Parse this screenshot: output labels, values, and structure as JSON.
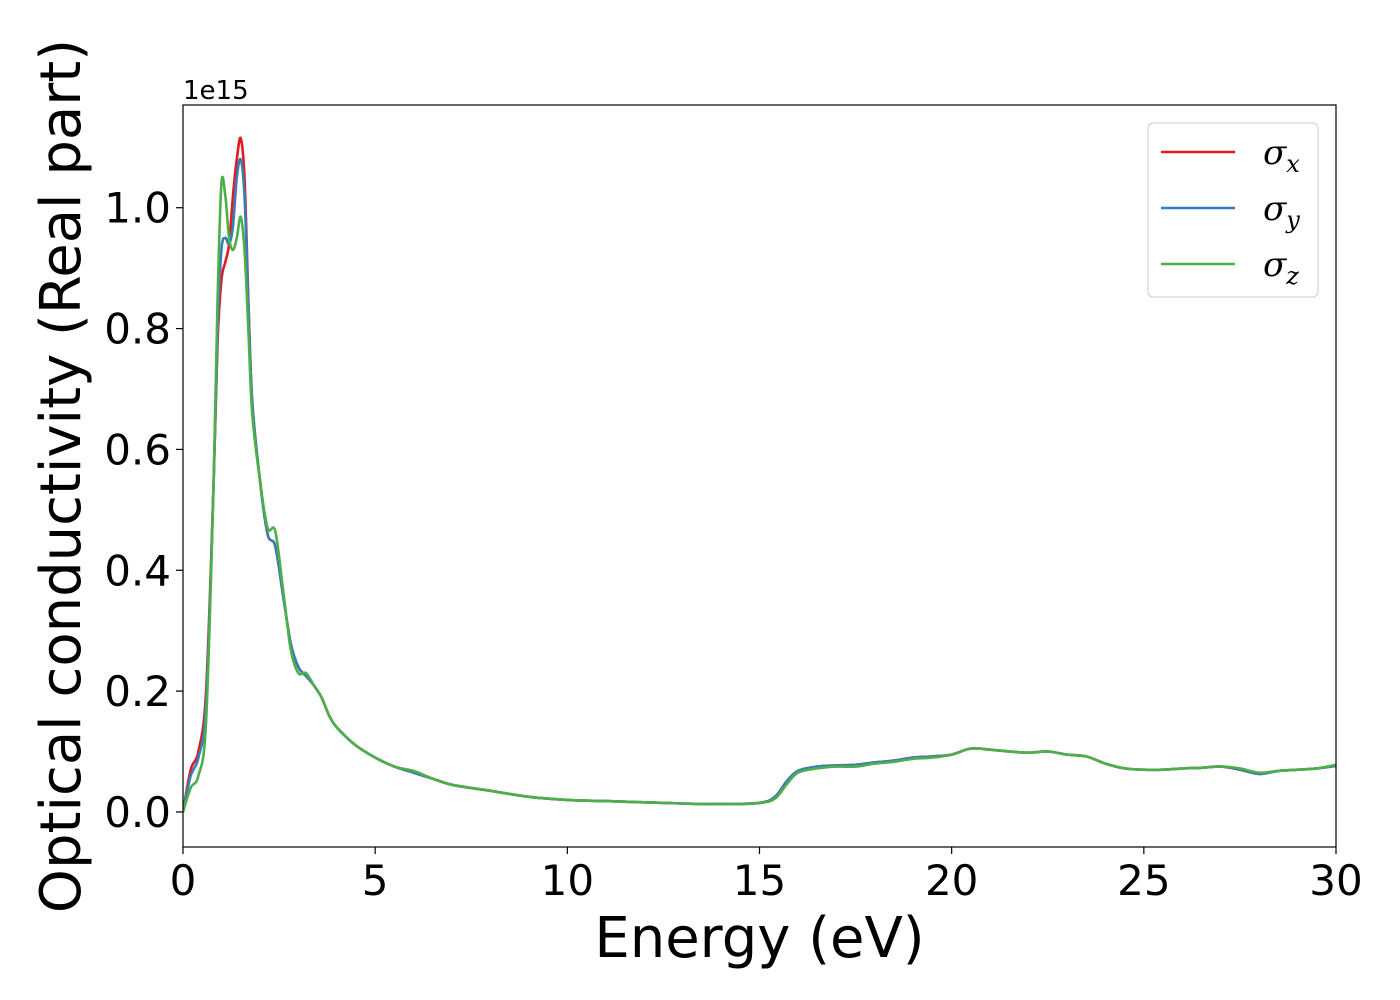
{
  "chart_data": {
    "type": "line",
    "xlabel": "Energy (eV)",
    "ylabel": "Optical conductivity (Real part)",
    "y_offset_text": "1e15",
    "y_scale": 1000000000000000.0,
    "xlim": [
      0,
      30
    ],
    "ylim": [
      -0.058,
      1.17
    ],
    "xticks": [
      0,
      5,
      10,
      15,
      20,
      25,
      30
    ],
    "xtick_labels": [
      "0",
      "5",
      "10",
      "15",
      "20",
      "25",
      "30"
    ],
    "yticks": [
      0.0,
      0.2,
      0.4,
      0.6,
      0.8,
      1.0
    ],
    "ytick_labels": [
      "0.0",
      "0.2",
      "0.4",
      "0.6",
      "0.8",
      "1.0"
    ],
    "grid": false,
    "legend_position": "top-right",
    "series": [
      {
        "name": "σx",
        "symbol": "σ",
        "subscript": "x",
        "color": "#e41a1c",
        "x": [
          0,
          0.2,
          0.4,
          0.6,
          0.8,
          0.9,
          1.0,
          1.1,
          1.2,
          1.3,
          1.4,
          1.5,
          1.6,
          1.7,
          1.8,
          2.0,
          2.2,
          2.4,
          2.6,
          2.8,
          3.0,
          3.2,
          3.4,
          3.6,
          3.8,
          4.0,
          4.5,
          5.0,
          5.5,
          6.0,
          6.5,
          7.0,
          8.0,
          9.0,
          10.0,
          11.0,
          12.0,
          13.0,
          14.0,
          15.0,
          15.4,
          15.7,
          16.0,
          16.5,
          17.0,
          17.5,
          18.0,
          18.5,
          19.0,
          19.5,
          20.0,
          20.5,
          21.0,
          21.5,
          22.0,
          22.5,
          23.0,
          23.5,
          24.0,
          24.5,
          25.0,
          25.5,
          26.0,
          26.5,
          27.0,
          27.5,
          28.0,
          28.5,
          29.0,
          29.5,
          30.0
        ],
        "y": [
          0.0,
          0.07,
          0.1,
          0.2,
          0.55,
          0.78,
          0.88,
          0.91,
          0.94,
          1.02,
          1.08,
          1.115,
          1.05,
          0.85,
          0.68,
          0.55,
          0.46,
          0.44,
          0.36,
          0.28,
          0.24,
          0.225,
          0.21,
          0.19,
          0.16,
          0.14,
          0.11,
          0.09,
          0.075,
          0.065,
          0.055,
          0.045,
          0.035,
          0.025,
          0.02,
          0.018,
          0.016,
          0.014,
          0.013,
          0.015,
          0.025,
          0.05,
          0.068,
          0.075,
          0.077,
          0.078,
          0.082,
          0.085,
          0.09,
          0.092,
          0.095,
          0.105,
          0.103,
          0.1,
          0.098,
          0.1,
          0.095,
          0.092,
          0.08,
          0.072,
          0.07,
          0.07,
          0.072,
          0.073,
          0.075,
          0.07,
          0.063,
          0.068,
          0.07,
          0.072,
          0.076
        ]
      },
      {
        "name": "σy",
        "symbol": "σ",
        "subscript": "y",
        "color": "#377eb8",
        "x": [
          0,
          0.2,
          0.4,
          0.6,
          0.8,
          0.9,
          1.0,
          1.1,
          1.2,
          1.3,
          1.4,
          1.5,
          1.6,
          1.7,
          1.8,
          2.0,
          2.2,
          2.4,
          2.6,
          2.8,
          3.0,
          3.2,
          3.4,
          3.6,
          3.8,
          4.0,
          4.5,
          5.0,
          5.5,
          6.0,
          6.5,
          7.0,
          8.0,
          9.0,
          10.0,
          11.0,
          12.0,
          13.0,
          14.0,
          15.0,
          15.4,
          15.7,
          16.0,
          16.5,
          17.0,
          17.5,
          18.0,
          18.5,
          19.0,
          19.5,
          20.0,
          20.5,
          21.0,
          21.5,
          22.0,
          22.5,
          23.0,
          23.5,
          24.0,
          24.5,
          25.0,
          25.5,
          26.0,
          26.5,
          27.0,
          27.5,
          28.0,
          28.5,
          29.0,
          29.5,
          30.0
        ],
        "y": [
          0.0,
          0.06,
          0.09,
          0.18,
          0.55,
          0.8,
          0.93,
          0.95,
          0.94,
          0.97,
          1.05,
          1.08,
          1.02,
          0.84,
          0.68,
          0.55,
          0.46,
          0.44,
          0.36,
          0.28,
          0.24,
          0.225,
          0.21,
          0.19,
          0.16,
          0.14,
          0.11,
          0.09,
          0.075,
          0.065,
          0.055,
          0.045,
          0.035,
          0.025,
          0.02,
          0.018,
          0.016,
          0.014,
          0.013,
          0.015,
          0.025,
          0.05,
          0.068,
          0.075,
          0.077,
          0.078,
          0.082,
          0.085,
          0.09,
          0.092,
          0.095,
          0.105,
          0.103,
          0.1,
          0.098,
          0.1,
          0.095,
          0.092,
          0.08,
          0.072,
          0.07,
          0.07,
          0.072,
          0.073,
          0.075,
          0.07,
          0.063,
          0.068,
          0.07,
          0.072,
          0.076
        ]
      },
      {
        "name": "σz",
        "symbol": "σ",
        "subscript": "z",
        "color": "#4daf4a",
        "x": [
          0,
          0.2,
          0.4,
          0.6,
          0.8,
          0.9,
          1.0,
          1.1,
          1.2,
          1.3,
          1.4,
          1.5,
          1.6,
          1.7,
          1.8,
          2.0,
          2.2,
          2.4,
          2.6,
          2.8,
          3.0,
          3.2,
          3.4,
          3.6,
          3.8,
          4.0,
          4.5,
          5.0,
          5.5,
          6.0,
          6.5,
          7.0,
          8.0,
          9.0,
          10.0,
          11.0,
          12.0,
          13.0,
          14.0,
          15.0,
          15.4,
          15.7,
          16.0,
          16.5,
          17.0,
          17.5,
          18.0,
          18.5,
          19.0,
          19.5,
          20.0,
          20.5,
          21.0,
          21.5,
          22.0,
          22.5,
          23.0,
          23.5,
          24.0,
          24.5,
          25.0,
          25.5,
          26.0,
          26.5,
          27.0,
          27.5,
          28.0,
          28.5,
          29.0,
          29.5,
          30.0
        ],
        "y": [
          0.0,
          0.04,
          0.06,
          0.15,
          0.55,
          0.85,
          1.04,
          1.02,
          0.95,
          0.93,
          0.95,
          0.985,
          0.93,
          0.8,
          0.66,
          0.55,
          0.47,
          0.465,
          0.37,
          0.27,
          0.23,
          0.23,
          0.21,
          0.19,
          0.16,
          0.14,
          0.11,
          0.09,
          0.075,
          0.068,
          0.055,
          0.045,
          0.035,
          0.025,
          0.02,
          0.018,
          0.016,
          0.014,
          0.013,
          0.015,
          0.022,
          0.045,
          0.065,
          0.072,
          0.075,
          0.075,
          0.08,
          0.083,
          0.088,
          0.09,
          0.095,
          0.105,
          0.103,
          0.1,
          0.098,
          0.1,
          0.095,
          0.092,
          0.08,
          0.072,
          0.07,
          0.07,
          0.072,
          0.073,
          0.075,
          0.072,
          0.065,
          0.068,
          0.07,
          0.072,
          0.078
        ]
      }
    ]
  }
}
